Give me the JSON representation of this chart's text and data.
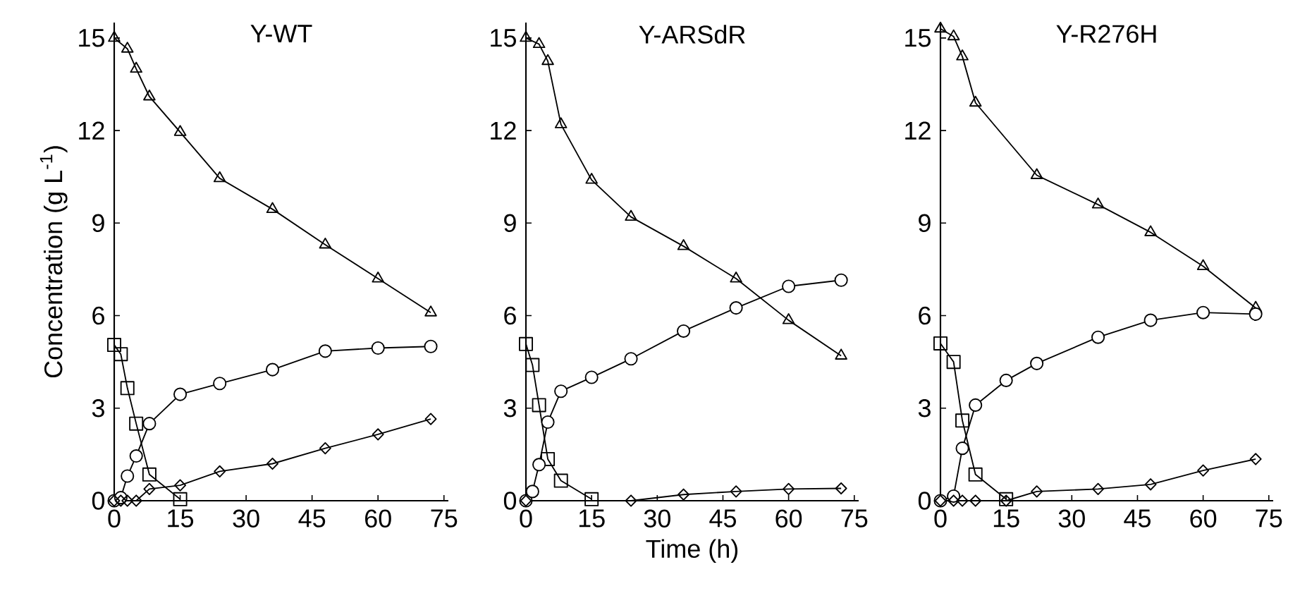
{
  "chart_data": [
    {
      "type": "line",
      "title": "Y-WT",
      "ylabel": "Concentration (g L$^{-1}$)",
      "xlim": [
        0,
        76
      ],
      "ylim": [
        0,
        15.5
      ],
      "xticks": [
        0,
        15,
        30,
        45,
        60,
        75
      ],
      "yticks": [
        0,
        3,
        6,
        9,
        12,
        15
      ],
      "grid": false,
      "series": [
        {
          "color": "#000000",
          "marker": "triangle",
          "x": [
            0,
            3,
            5,
            8,
            15,
            24,
            36,
            48,
            60,
            72
          ],
          "values": [
            15.0,
            14.65,
            14.0,
            13.1,
            11.95,
            10.45,
            9.45,
            8.3,
            7.2,
            6.1
          ]
        },
        {
          "color": "#000000",
          "marker": "square",
          "x": [
            0,
            1.5,
            3,
            5,
            8,
            15
          ],
          "values": [
            5.05,
            4.75,
            3.65,
            2.5,
            0.85,
            0.05
          ]
        },
        {
          "color": "#000000",
          "marker": "circle",
          "x": [
            0,
            1.5,
            3,
            5,
            8,
            15,
            24,
            36,
            48,
            60,
            72
          ],
          "values": [
            0,
            0.1,
            0.8,
            1.45,
            2.5,
            3.45,
            3.8,
            4.25,
            4.85,
            4.95,
            5.0
          ]
        },
        {
          "color": "#000000",
          "marker": "diamond",
          "x": [
            0,
            1.5,
            3,
            5,
            8,
            15,
            24,
            36,
            48,
            60,
            72
          ],
          "values": [
            0,
            0,
            0,
            0,
            0.38,
            0.5,
            0.95,
            1.2,
            1.7,
            2.15,
            2.65
          ]
        }
      ]
    },
    {
      "type": "line",
      "title": "Y-ARSdR",
      "xlabel": "Time (h)",
      "xlim": [
        0,
        76
      ],
      "ylim": [
        0,
        15.5
      ],
      "xticks": [
        0,
        15,
        30,
        45,
        60,
        75
      ],
      "yticks": [
        0,
        3,
        6,
        9,
        12,
        15
      ],
      "grid": false,
      "series": [
        {
          "color": "#000000",
          "marker": "triangle",
          "x": [
            0,
            3,
            5,
            8,
            15,
            24,
            36,
            48,
            60,
            72
          ],
          "values": [
            15.0,
            14.8,
            14.25,
            12.2,
            10.4,
            9.2,
            8.25,
            7.2,
            5.85,
            4.7
          ]
        },
        {
          "color": "#000000",
          "marker": "square",
          "x": [
            0,
            1.5,
            3,
            5,
            8,
            15
          ],
          "values": [
            5.08,
            4.4,
            3.1,
            1.35,
            0.65,
            0.05
          ]
        },
        {
          "color": "#000000",
          "marker": "circle",
          "x": [
            0,
            1.5,
            3,
            5,
            8,
            15,
            24,
            36,
            48,
            60,
            72
          ],
          "values": [
            0,
            0.3,
            1.17,
            2.55,
            3.55,
            4.0,
            4.6,
            5.5,
            6.25,
            6.95,
            7.15
          ]
        },
        {
          "color": "#000000",
          "marker": "diamond",
          "x": [
            0,
            24,
            36,
            48,
            60,
            72
          ],
          "values": [
            0,
            0,
            0.2,
            0.3,
            0.38,
            0.4
          ]
        }
      ]
    },
    {
      "type": "line",
      "title": "Y-R276H",
      "xlim": [
        0,
        76
      ],
      "ylim": [
        0,
        15.5
      ],
      "xticks": [
        0,
        15,
        30,
        45,
        60,
        75
      ],
      "yticks": [
        0,
        3,
        6,
        9,
        12,
        15
      ],
      "grid": false,
      "series": [
        {
          "color": "#000000",
          "marker": "triangle",
          "x": [
            0,
            3,
            5,
            8,
            22,
            36,
            48,
            60,
            72
          ],
          "values": [
            15.3,
            15.05,
            14.4,
            12.9,
            10.55,
            9.6,
            8.7,
            7.6,
            6.25
          ]
        },
        {
          "color": "#000000",
          "marker": "square",
          "x": [
            0,
            3,
            5,
            8,
            15
          ],
          "values": [
            5.1,
            4.5,
            2.6,
            0.85,
            0.05
          ]
        },
        {
          "color": "#000000",
          "marker": "circle",
          "x": [
            0,
            3,
            5,
            8,
            15,
            22,
            36,
            48,
            60,
            72
          ],
          "values": [
            0,
            0.15,
            1.7,
            3.1,
            3.9,
            4.45,
            5.3,
            5.85,
            6.1,
            6.05
          ]
        },
        {
          "color": "#000000",
          "marker": "diamond",
          "x": [
            0,
            3,
            5,
            8,
            15,
            22,
            36,
            48,
            60,
            72
          ],
          "values": [
            0,
            0,
            0,
            0,
            0,
            0.3,
            0.38,
            0.53,
            0.98,
            1.35
          ]
        }
      ]
    }
  ]
}
